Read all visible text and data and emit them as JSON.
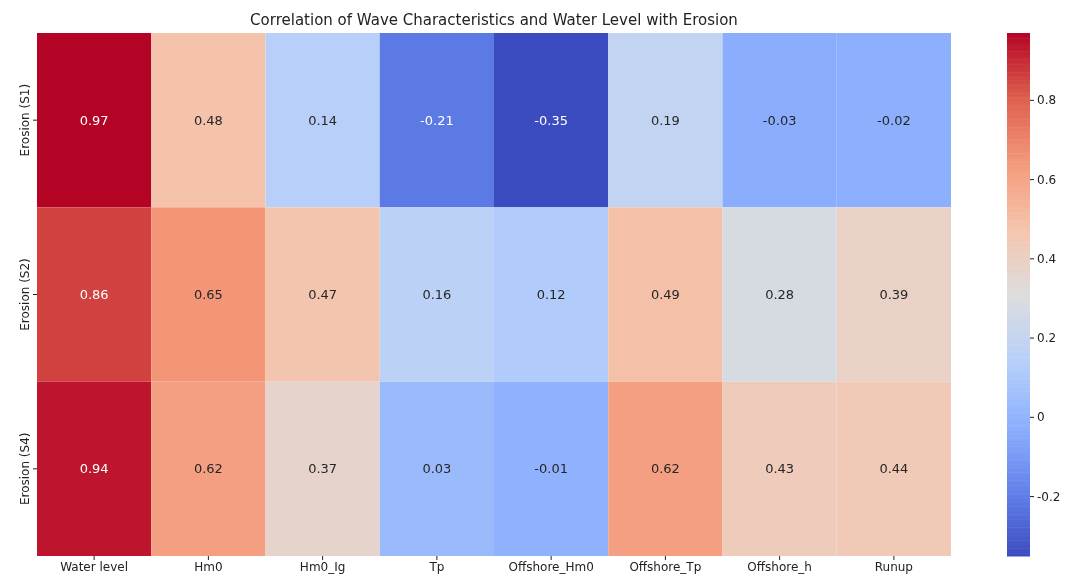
{
  "chart_data": {
    "type": "heatmap",
    "title": "Correlation of Wave Characteristics and Water Level with Erosion",
    "categories": [
      "Water level",
      "Hm0",
      "Hm0_Ig",
      "Tp",
      "Offshore_Hm0",
      "Offshore_Tp",
      "Offshore_h",
      "Runup"
    ],
    "y_categories": [
      "Erosion (S1)",
      "Erosion (S2)",
      "Erosion (S4)"
    ],
    "cells": [
      [
        0.97,
        0.48,
        0.14,
        -0.21,
        -0.35,
        0.19,
        -0.03,
        -0.02
      ],
      [
        0.86,
        0.65,
        0.47,
        0.16,
        0.12,
        0.49,
        0.28,
        0.39
      ],
      [
        0.94,
        0.62,
        0.37,
        0.03,
        -0.01,
        0.62,
        0.43,
        0.44
      ]
    ],
    "data_labels": true,
    "clim": [
      -0.35,
      0.97
    ],
    "cticks": [
      -0.2,
      0,
      0.2,
      0.4,
      0.6,
      0.8
    ]
  }
}
